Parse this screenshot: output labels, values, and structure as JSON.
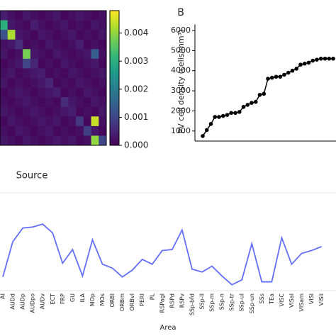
{
  "chart_data": [
    {
      "type": "heatmap",
      "xlabel": "Source",
      "values": [
        [
          0.0004,
          0.0002,
          0.0001,
          0.0003,
          0.0002,
          0.0001,
          0.0002,
          0.0003,
          0.0001,
          0.0002,
          0.0003,
          0.0002,
          0.0001,
          0.0002
        ],
        [
          0.003,
          0.0003,
          0.0002,
          0.0001,
          0.0004,
          0.0002,
          0.0001,
          0.0002,
          0.0003,
          0.0001,
          0.0002,
          0.0001,
          0.0003,
          0.0002
        ],
        [
          0.0012,
          0.0042,
          0.0003,
          0.0002,
          0.0001,
          0.0003,
          0.0002,
          0.0001,
          0.0002,
          0.0003,
          0.0001,
          0.0002,
          0.0001,
          0.0003
        ],
        [
          0.0002,
          0.0003,
          0.0006,
          0.0001,
          0.0002,
          0.0001,
          0.0003,
          0.0002,
          0.0001,
          0.0002,
          0.0004,
          0.0001,
          0.0002,
          0.0001
        ],
        [
          0.0003,
          0.0001,
          0.0002,
          0.0038,
          0.0003,
          0.0002,
          0.0001,
          0.0003,
          0.0002,
          0.0001,
          0.0002,
          0.0003,
          0.0014,
          0.0002
        ],
        [
          0.0001,
          0.0002,
          0.0003,
          0.001,
          0.0005,
          0.0001,
          0.0002,
          0.0001,
          0.0003,
          0.0002,
          0.0001,
          0.0002,
          0.0003,
          0.0001
        ],
        [
          0.0002,
          0.0003,
          0.0001,
          0.0002,
          0.0003,
          0.0004,
          0.0001,
          0.0002,
          0.0001,
          0.0003,
          0.0002,
          0.0001,
          0.0002,
          0.0003
        ],
        [
          0.0003,
          0.0001,
          0.0002,
          0.0001,
          0.0002,
          0.0003,
          0.0005,
          0.0001,
          0.0002,
          0.0001,
          0.0003,
          0.0002,
          0.0001,
          0.0002
        ],
        [
          0.0001,
          0.0002,
          0.0003,
          0.0002,
          0.0001,
          0.0002,
          0.0003,
          0.0004,
          0.0001,
          0.0002,
          0.0001,
          0.0003,
          0.0002,
          0.0001
        ],
        [
          0.0002,
          0.0001,
          0.0002,
          0.0003,
          0.0002,
          0.0001,
          0.0002,
          0.0001,
          0.0006,
          0.0003,
          0.0002,
          0.0001,
          0.0003,
          0.0002
        ],
        [
          0.0003,
          0.0002,
          0.0001,
          0.0002,
          0.0003,
          0.0002,
          0.0001,
          0.0002,
          0.0003,
          0.0004,
          0.0001,
          0.0002,
          0.0001,
          0.0003
        ],
        [
          0.0001,
          0.0003,
          0.0002,
          0.0001,
          0.0002,
          0.0003,
          0.0002,
          0.0003,
          0.0001,
          0.0002,
          0.0008,
          0.0001,
          0.0044,
          0.0002
        ],
        [
          0.0002,
          0.0001,
          0.0003,
          0.0002,
          0.0001,
          0.0002,
          0.0003,
          0.0001,
          0.0002,
          0.0001,
          0.0002,
          0.0009,
          0.0003,
          0.0001
        ],
        [
          0.0003,
          0.0002,
          0.0001,
          0.0003,
          0.0002,
          0.0001,
          0.0002,
          0.0003,
          0.0002,
          0.0003,
          0.0001,
          0.0002,
          0.004,
          0.001
        ]
      ],
      "clim": [
        0,
        0.0048
      ],
      "cticks": [
        {
          "value": 0,
          "label": "0.000"
        },
        {
          "value": 0.001,
          "label": "0.001"
        },
        {
          "value": 0.002,
          "label": "0.002"
        },
        {
          "value": 0.003,
          "label": "0.003"
        },
        {
          "value": 0.004,
          "label": "0.004"
        }
      ]
    },
    {
      "type": "line",
      "panel": "B",
      "ylabel": "PV cell density (cells/mm³)",
      "color": "#000000",
      "values": [
        750,
        1050,
        1350,
        1700,
        1700,
        1750,
        1800,
        1900,
        1900,
        1950,
        2200,
        2300,
        2400,
        2450,
        2800,
        2850,
        3600,
        3650,
        3700,
        3700,
        3800,
        3900,
        4000,
        4100,
        4300,
        4350,
        4400,
        4500,
        4550,
        4600,
        4600,
        4600,
        4600
      ],
      "ylim": [
        500,
        6300
      ],
      "yticks": [
        1000,
        2000,
        3000,
        4000,
        5000,
        6000
      ]
    },
    {
      "type": "line",
      "xlabel": "Area",
      "color": "#636efa",
      "categories": [
        "AI",
        "AUDd",
        "AUDp",
        "AUDpo",
        "AUDv",
        "ECT",
        "FRP",
        "GU",
        "ILA",
        "MOp",
        "MOs",
        "ORBl",
        "ORBm",
        "ORBvl",
        "PERI",
        "PL",
        "RSPagl",
        "RSPd",
        "RSPv",
        "SSp-bfd",
        "SSp-ll",
        "SSp-m",
        "SSp-n",
        "SSp-tr",
        "SSp-ul",
        "SSp-un",
        "SSs",
        "TEa",
        "VISC",
        "VISal",
        "VISam",
        "VISl",
        "VISli"
      ],
      "values": [
        0.14,
        0.5,
        0.64,
        0.65,
        0.68,
        0.59,
        0.28,
        0.42,
        0.15,
        0.52,
        0.27,
        0.23,
        0.14,
        0.21,
        0.32,
        0.27,
        0.41,
        0.42,
        0.62,
        0.22,
        0.19,
        0.25,
        0.15,
        0.06,
        0.11,
        0.48,
        0.09,
        0.09,
        0.54,
        0.27,
        0.38,
        0.41,
        0.45
      ],
      "ylim": [
        0,
        1
      ]
    }
  ]
}
